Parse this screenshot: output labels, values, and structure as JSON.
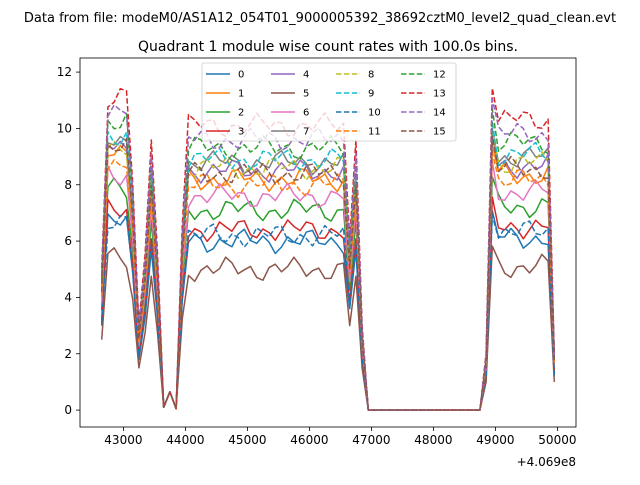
{
  "figure": {
    "suptitle": "Data from file: modeM0/AS1A12_054T01_9000005392_38692cztM0_level2_quad_clean.evt",
    "title": "Quadrant 1 module wise count rates with 100.0s bins.",
    "x_offset_label": "+4.069e8"
  },
  "chart_data": {
    "type": "line",
    "title": "Quadrant 1 module wise count rates with 100.0s bins.",
    "xlabel": "",
    "ylabel": "",
    "x_offset": "+4.069e8",
    "xlim": [
      42300,
      50300
    ],
    "ylim": [
      -0.6,
      12.5
    ],
    "xticks": [
      43000,
      44000,
      45000,
      46000,
      47000,
      48000,
      49000,
      50000
    ],
    "yticks": [
      0,
      2,
      4,
      6,
      8,
      10,
      12
    ],
    "xtick_labels": [
      "43000",
      "44000",
      "45000",
      "46000",
      "47000",
      "48000",
      "49000",
      "50000"
    ],
    "ytick_labels": [
      "0",
      "2",
      "4",
      "6",
      "8",
      "10",
      "12"
    ],
    "grid": false,
    "legend": {
      "placement": "top-center",
      "columns": 4
    },
    "x": [
      42650,
      42750,
      42850,
      42950,
      43050,
      43150,
      43250,
      43350,
      43450,
      43550,
      43650,
      43750,
      43850,
      43950,
      44050,
      44150,
      44250,
      44350,
      44450,
      44550,
      44650,
      44750,
      44850,
      44950,
      45050,
      45150,
      45250,
      45350,
      45450,
      45550,
      45650,
      45750,
      45850,
      45950,
      46050,
      46150,
      46250,
      46350,
      46450,
      46550,
      46650,
      46750,
      46850,
      46950,
      47050,
      47150,
      47250,
      47350,
      47450,
      47550,
      47650,
      47750,
      47850,
      47950,
      48050,
      48150,
      48250,
      48350,
      48450,
      48550,
      48650,
      48750,
      48850,
      48950,
      49050,
      49150,
      49250,
      49350,
      49450,
      49550,
      49650,
      49750,
      49850,
      49950
    ],
    "series": [
      {
        "name": "0",
        "color": "#1f77b4",
        "dashed": false,
        "level": 6.0
      },
      {
        "name": "1",
        "color": "#ff7f0e",
        "dashed": false,
        "level": 8.2
      },
      {
        "name": "2",
        "color": "#2ca02c",
        "dashed": false,
        "level": 7.1
      },
      {
        "name": "3",
        "color": "#d62728",
        "dashed": false,
        "level": 6.4
      },
      {
        "name": "4",
        "color": "#9467bd",
        "dashed": false,
        "level": 8.5
      },
      {
        "name": "5",
        "color": "#8c564b",
        "dashed": false,
        "level": 5.0
      },
      {
        "name": "6",
        "color": "#e377c2",
        "dashed": false,
        "level": 7.6
      },
      {
        "name": "7",
        "color": "#7f7f7f",
        "dashed": false,
        "level": 8.8
      },
      {
        "name": "8",
        "color": "#bcbd22",
        "dashed": true,
        "level": 8.6
      },
      {
        "name": "9",
        "color": "#17becf",
        "dashed": true,
        "level": 8.9
      },
      {
        "name": "10",
        "color": "#1f77b4",
        "dashed": true,
        "level": 6.2
      },
      {
        "name": "11",
        "color": "#ff7f0e",
        "dashed": true,
        "level": 8.0
      },
      {
        "name": "12",
        "color": "#2ca02c",
        "dashed": true,
        "level": 9.3
      },
      {
        "name": "13",
        "color": "#d62728",
        "dashed": true,
        "level": 10.1
      },
      {
        "name": "14",
        "color": "#9467bd",
        "dashed": true,
        "level": 9.6
      },
      {
        "name": "15",
        "color": "#8c564b",
        "dashed": true,
        "level": 8.4
      }
    ]
  }
}
